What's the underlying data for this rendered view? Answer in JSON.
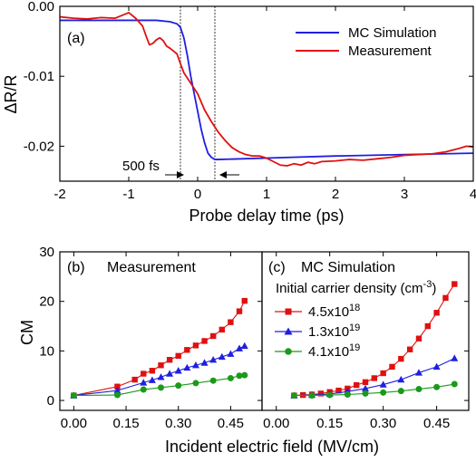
{
  "chart_data": [
    {
      "id": "a",
      "type": "line",
      "panel_label": "(a)",
      "xlabel": "Probe delay time (ps)",
      "ylabel": "ΔR/R",
      "xlim": [
        -2,
        4
      ],
      "ylim": [
        -0.025,
        0.0
      ],
      "x_ticks": [
        "-2",
        "-1",
        "0",
        "1",
        "2",
        "3",
        "4"
      ],
      "y_ticks": [
        "0.00",
        "-0.01",
        "-0.02"
      ],
      "legend_position": "top-right",
      "annotation": "500 fs",
      "marker_lines_x": [
        -0.25,
        0.25
      ],
      "colors": {
        "simulation": "#1f1fe0",
        "measurement": "#e01010"
      },
      "series": [
        {
          "name": "MC Simulation",
          "color": "#1f1fe0",
          "x": [
            -2,
            -1.5,
            -1,
            -0.6,
            -0.4,
            -0.3,
            -0.25,
            -0.2,
            -0.15,
            -0.1,
            -0.05,
            0,
            0.05,
            0.1,
            0.15,
            0.2,
            0.25,
            0.3,
            1,
            2,
            3,
            4
          ],
          "y": [
            -0.002,
            -0.002,
            -0.002,
            -0.002,
            -0.0022,
            -0.0025,
            -0.003,
            -0.0045,
            -0.007,
            -0.01,
            -0.0125,
            -0.015,
            -0.0175,
            -0.0195,
            -0.021,
            -0.0216,
            -0.0219,
            -0.0219,
            -0.0217,
            -0.0214,
            -0.0212,
            -0.021
          ]
        },
        {
          "name": "Measurement",
          "color": "#e01010",
          "x": [
            -2,
            -1.8,
            -1.6,
            -1.4,
            -1.2,
            -1.1,
            -1.0,
            -0.9,
            -0.8,
            -0.75,
            -0.7,
            -0.65,
            -0.6,
            -0.55,
            -0.5,
            -0.45,
            -0.4,
            -0.35,
            -0.3,
            -0.25,
            -0.2,
            -0.1,
            0,
            0.1,
            0.2,
            0.3,
            0.4,
            0.5,
            0.6,
            0.7,
            0.8,
            0.9,
            1.0,
            1.1,
            1.2,
            1.3,
            1.4,
            1.5,
            1.6,
            1.7,
            1.8,
            2.0,
            2.2,
            2.4,
            2.6,
            2.8,
            3.0,
            3.2,
            3.4,
            3.6,
            3.8,
            3.9,
            4.0
          ],
          "y": [
            -0.0015,
            -0.0017,
            -0.0018,
            -0.0016,
            -0.0017,
            -0.0013,
            -0.0009,
            -0.0017,
            -0.0028,
            -0.0042,
            -0.0055,
            -0.0053,
            -0.0048,
            -0.0045,
            -0.0049,
            -0.0057,
            -0.006,
            -0.0064,
            -0.0068,
            -0.0082,
            -0.0095,
            -0.011,
            -0.0125,
            -0.0148,
            -0.0165,
            -0.018,
            -0.0192,
            -0.0202,
            -0.0208,
            -0.0212,
            -0.0214,
            -0.0214,
            -0.0217,
            -0.0222,
            -0.0227,
            -0.0228,
            -0.0225,
            -0.0227,
            -0.0223,
            -0.0225,
            -0.0222,
            -0.0221,
            -0.0219,
            -0.022,
            -0.0218,
            -0.0216,
            -0.0213,
            -0.0212,
            -0.0211,
            -0.0208,
            -0.0203,
            -0.02,
            -0.0201
          ]
        }
      ]
    },
    {
      "id": "b",
      "type": "line",
      "panel_label": "(b)",
      "title": "Measurement",
      "ylabel": "CM",
      "xlim": [
        -0.04,
        0.54
      ],
      "ylim": [
        -2,
        30
      ],
      "x_ticks": [
        "0.00",
        "0.15",
        "0.30",
        "0.45"
      ],
      "y_ticks": [
        "0",
        "10",
        "20",
        "30"
      ],
      "series": [
        {
          "marker": "square",
          "color": "#e01010",
          "x": [
            0.0,
            0.125,
            0.175,
            0.2,
            0.225,
            0.25,
            0.275,
            0.3,
            0.325,
            0.35,
            0.375,
            0.4,
            0.425,
            0.45,
            0.475,
            0.49
          ],
          "y": [
            1.0,
            2.8,
            4.2,
            5.4,
            6.0,
            7.1,
            8.2,
            9.0,
            10.2,
            11.1,
            12.0,
            13.0,
            14.3,
            15.8,
            18.0,
            20.1
          ]
        },
        {
          "marker": "triangle",
          "color": "#1f1fe0",
          "x": [
            0.0,
            0.125,
            0.2,
            0.225,
            0.25,
            0.275,
            0.3,
            0.325,
            0.35,
            0.375,
            0.4,
            0.425,
            0.45,
            0.475,
            0.49
          ],
          "y": [
            1.0,
            2.0,
            3.6,
            4.1,
            4.7,
            5.4,
            6.0,
            6.6,
            7.1,
            7.6,
            8.2,
            8.8,
            9.4,
            10.5,
            11.0
          ]
        },
        {
          "marker": "circle",
          "color": "#1a9a1a",
          "x": [
            0.0,
            0.125,
            0.2,
            0.25,
            0.3,
            0.35,
            0.4,
            0.45,
            0.475,
            0.49
          ],
          "y": [
            1.0,
            1.1,
            2.2,
            2.6,
            3.0,
            3.5,
            4.0,
            4.5,
            5.0,
            5.1
          ]
        }
      ]
    },
    {
      "id": "c",
      "type": "line",
      "panel_label": "(c)",
      "title": "MC Simulation",
      "xlabel": "Incident electric field (MV/cm)",
      "xlim": [
        -0.04,
        0.54
      ],
      "ylim": [
        -2,
        30
      ],
      "x_ticks": [
        "0.00",
        "0.15",
        "0.30",
        "0.45"
      ],
      "legend_title": "Initial carrier density (cm",
      "legend_title_sup": "-3",
      "legend_title_end": ")",
      "legend_position": "top-left",
      "series": [
        {
          "name": "4.5x10",
          "name_sup": "18",
          "marker": "square",
          "color": "#e01010",
          "x": [
            0.05,
            0.075,
            0.1,
            0.125,
            0.15,
            0.175,
            0.2,
            0.225,
            0.25,
            0.275,
            0.3,
            0.325,
            0.35,
            0.375,
            0.4,
            0.425,
            0.45,
            0.475,
            0.5
          ],
          "y": [
            1.0,
            1.1,
            1.2,
            1.4,
            1.7,
            2.0,
            2.4,
            3.1,
            3.7,
            4.5,
            5.5,
            6.8,
            8.4,
            10.3,
            12.5,
            15.0,
            17.7,
            20.7,
            23.5
          ]
        },
        {
          "name": "1.3x10",
          "name_sup": "19",
          "marker": "triangle",
          "color": "#1f1fe0",
          "x": [
            0.05,
            0.1,
            0.15,
            0.2,
            0.25,
            0.3,
            0.35,
            0.4,
            0.45,
            0.5
          ],
          "y": [
            1.0,
            1.1,
            1.3,
            1.8,
            2.4,
            3.2,
            4.2,
            5.6,
            6.8,
            8.5
          ]
        },
        {
          "name": "4.1x10",
          "name_sup": "19",
          "marker": "circle",
          "color": "#1a9a1a",
          "x": [
            0.05,
            0.1,
            0.15,
            0.2,
            0.25,
            0.3,
            0.35,
            0.4,
            0.45,
            0.5
          ],
          "y": [
            1.0,
            1.0,
            1.1,
            1.2,
            1.4,
            1.6,
            1.9,
            2.3,
            2.7,
            3.3
          ]
        }
      ]
    }
  ]
}
